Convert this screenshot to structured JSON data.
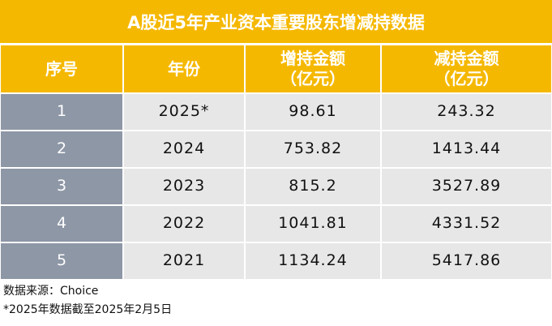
{
  "header": {
    "title": "A股近5年产业资本重要股东增减持数据"
  },
  "table": {
    "columns": [
      "序号",
      "年份",
      "增持金额\n（亿元）",
      "减持金额\n（亿元）"
    ],
    "rows": [
      [
        "1",
        "2025*",
        "98.61",
        "243.32"
      ],
      [
        "2",
        "2024",
        "753.82",
        "1413.44"
      ],
      [
        "3",
        "2023",
        "815.2",
        "3527.89"
      ],
      [
        "4",
        "2022",
        "1041.81",
        "4331.52"
      ],
      [
        "5",
        "2021",
        "1134.24",
        "5417.86"
      ]
    ]
  },
  "footer": {
    "notes": [
      "数据来源：Choice",
      "*2025年数据截至2025年2月5日"
    ]
  }
}
